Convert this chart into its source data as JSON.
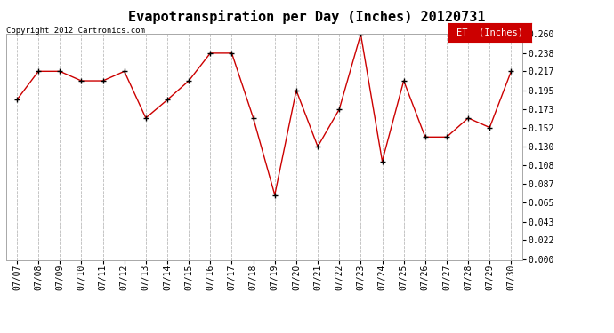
{
  "title": "Evapotranspiration per Day (Inches) 20120731",
  "copyright": "Copyright 2012 Cartronics.com",
  "legend_label": "ET  (Inches)",
  "x_labels": [
    "07/07",
    "07/08",
    "07/09",
    "07/10",
    "07/11",
    "07/12",
    "07/13",
    "07/14",
    "07/15",
    "07/16",
    "07/17",
    "07/18",
    "07/19",
    "07/20",
    "07/21",
    "07/22",
    "07/23",
    "07/24",
    "07/25",
    "07/26",
    "07/27",
    "07/28",
    "07/29",
    "07/30"
  ],
  "y_values": [
    0.184,
    0.217,
    0.217,
    0.206,
    0.206,
    0.217,
    0.163,
    0.184,
    0.206,
    0.238,
    0.238,
    0.163,
    0.074,
    0.195,
    0.13,
    0.173,
    0.26,
    0.113,
    0.206,
    0.141,
    0.141,
    0.163,
    0.152,
    0.217
  ],
  "line_color": "#cc0000",
  "marker_color": "#000000",
  "background_color": "#ffffff",
  "grid_color": "#bbbbbb",
  "y_ticks": [
    0.0,
    0.022,
    0.043,
    0.065,
    0.087,
    0.108,
    0.13,
    0.152,
    0.173,
    0.195,
    0.217,
    0.238,
    0.26
  ],
  "y_min": 0.0,
  "y_max": 0.26,
  "title_fontsize": 11,
  "tick_fontsize": 7,
  "copyright_fontsize": 6.5,
  "legend_bg": "#cc0000",
  "legend_text_color": "#ffffff",
  "legend_fontsize": 7.5
}
